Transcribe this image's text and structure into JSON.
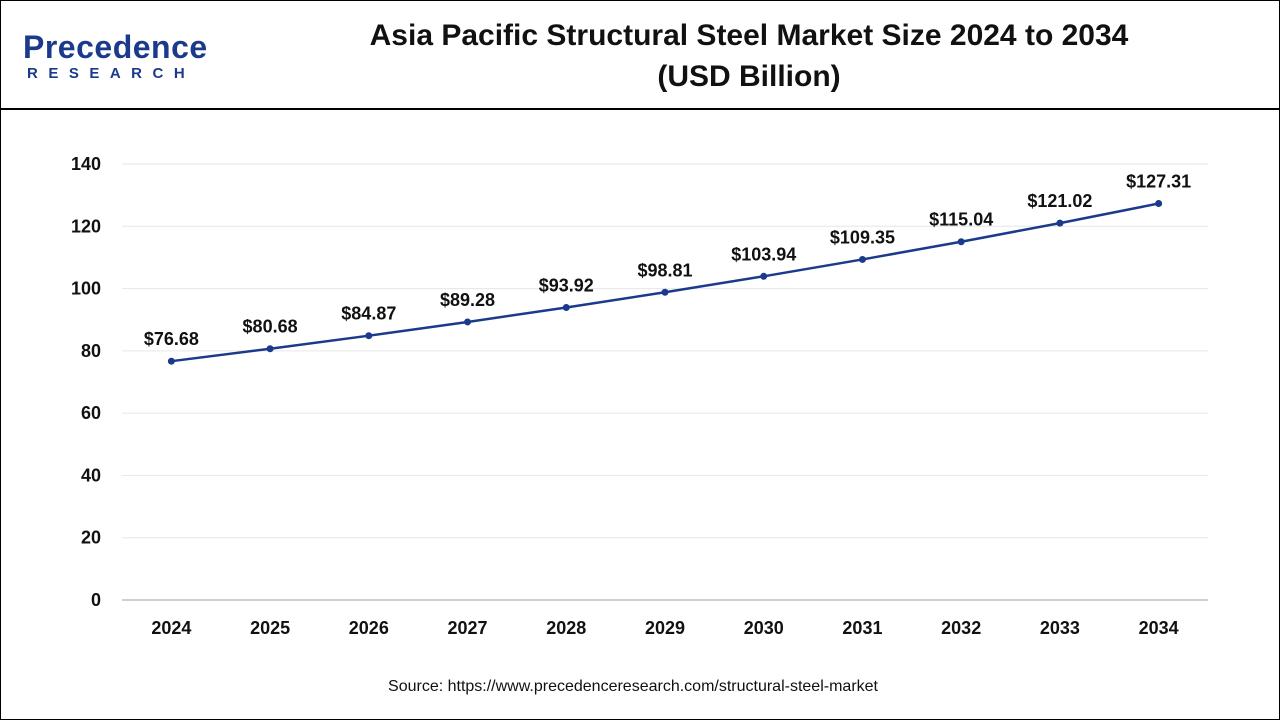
{
  "brand": {
    "name": "Precedence",
    "sub": "RESEARCH"
  },
  "header": {
    "title_line1": "Asia Pacific Structural Steel Market Size 2024 to 2034",
    "title_line2": "(USD Billion)"
  },
  "source": "Source: https://www.precedenceresearch.com/structural-steel-market",
  "colors": {
    "line": "#1b3a8c",
    "grid": "#e6e6e6",
    "axis": "#bfbfbf"
  },
  "chart_data": {
    "type": "line",
    "title": "Asia Pacific Structural Steel Market Size 2024 to 2034 (USD Billion)",
    "xlabel": "",
    "ylabel": "",
    "categories": [
      "2024",
      "2025",
      "2026",
      "2027",
      "2028",
      "2029",
      "2030",
      "2031",
      "2032",
      "2033",
      "2034"
    ],
    "series": [
      {
        "values": [
          76.68,
          80.68,
          84.87,
          89.28,
          93.92,
          98.81,
          103.94,
          109.35,
          115.04,
          121.02,
          127.31
        ],
        "labels": [
          "$76.68",
          "$80.68",
          "$84.87",
          "$89.28",
          "$93.92",
          "$98.81",
          "$103.94",
          "$109.35",
          "$115.04",
          "$121.02",
          "$127.31"
        ]
      }
    ],
    "ylim": [
      0,
      140
    ],
    "yticks": [
      0,
      20,
      40,
      60,
      80,
      100,
      120,
      140
    ],
    "grid": true,
    "legend": "none"
  }
}
